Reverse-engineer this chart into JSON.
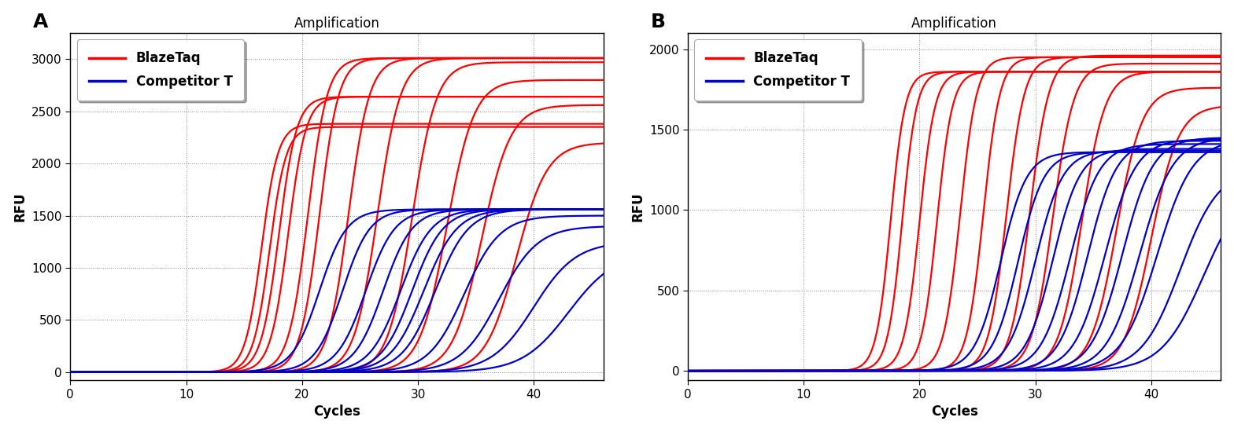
{
  "panel_A": {
    "title": "Amplification",
    "xlabel": "Cycles",
    "ylabel": "RFU",
    "xlim": [
      0,
      46
    ],
    "ylim": [
      -80,
      3250
    ],
    "yticks": [
      0,
      500,
      1000,
      1500,
      2000,
      2500,
      3000
    ],
    "xticks": [
      0,
      10,
      20,
      30,
      40
    ],
    "red_curves": [
      {
        "mid": 16.5,
        "plateau": 2380,
        "slope": 1.4
      },
      {
        "mid": 17.2,
        "plateau": 2350,
        "slope": 1.4
      },
      {
        "mid": 18.0,
        "plateau": 2640,
        "slope": 1.3
      },
      {
        "mid": 18.8,
        "plateau": 2640,
        "slope": 1.3
      },
      {
        "mid": 20.5,
        "plateau": 3010,
        "slope": 1.2
      },
      {
        "mid": 21.5,
        "plateau": 3010,
        "slope": 1.2
      },
      {
        "mid": 24.0,
        "plateau": 3010,
        "slope": 1.1
      },
      {
        "mid": 26.5,
        "plateau": 3010,
        "slope": 1.0
      },
      {
        "mid": 29.5,
        "plateau": 2970,
        "slope": 0.95
      },
      {
        "mid": 32.5,
        "plateau": 2800,
        "slope": 0.85
      },
      {
        "mid": 35.5,
        "plateau": 2560,
        "slope": 0.8
      },
      {
        "mid": 38.5,
        "plateau": 2200,
        "slope": 0.75
      }
    ],
    "blue_curves": [
      {
        "mid": 21.5,
        "plateau": 1560,
        "slope": 0.85
      },
      {
        "mid": 23.5,
        "plateau": 1560,
        "slope": 0.85
      },
      {
        "mid": 25.5,
        "plateau": 1560,
        "slope": 0.8
      },
      {
        "mid": 27.0,
        "plateau": 1560,
        "slope": 0.8
      },
      {
        "mid": 28.5,
        "plateau": 1560,
        "slope": 0.75
      },
      {
        "mid": 29.5,
        "plateau": 1560,
        "slope": 0.75
      },
      {
        "mid": 30.5,
        "plateau": 1560,
        "slope": 0.7
      },
      {
        "mid": 31.5,
        "plateau": 1560,
        "slope": 0.7
      },
      {
        "mid": 34.0,
        "plateau": 1500,
        "slope": 0.65
      },
      {
        "mid": 37.0,
        "plateau": 1400,
        "slope": 0.6
      },
      {
        "mid": 40.0,
        "plateau": 1250,
        "slope": 0.55
      },
      {
        "mid": 43.0,
        "plateau": 1150,
        "slope": 0.5
      }
    ]
  },
  "panel_B": {
    "title": "Amplification",
    "xlabel": "Cycles",
    "ylabel": "RFU",
    "xlim": [
      0,
      46
    ],
    "ylim": [
      -60,
      2100
    ],
    "yticks": [
      0,
      500,
      1000,
      1500,
      2000
    ],
    "xticks": [
      0,
      10,
      20,
      30,
      40
    ],
    "red_curves": [
      {
        "mid": 17.5,
        "plateau": 1860,
        "slope": 1.6
      },
      {
        "mid": 18.5,
        "plateau": 1860,
        "slope": 1.6
      },
      {
        "mid": 20.0,
        "plateau": 1860,
        "slope": 1.5
      },
      {
        "mid": 21.5,
        "plateau": 1860,
        "slope": 1.5
      },
      {
        "mid": 23.5,
        "plateau": 1950,
        "slope": 1.4
      },
      {
        "mid": 25.5,
        "plateau": 1950,
        "slope": 1.4
      },
      {
        "mid": 27.5,
        "plateau": 1950,
        "slope": 1.3
      },
      {
        "mid": 29.5,
        "plateau": 1960,
        "slope": 1.2
      },
      {
        "mid": 31.5,
        "plateau": 1910,
        "slope": 1.1
      },
      {
        "mid": 34.0,
        "plateau": 1860,
        "slope": 1.0
      },
      {
        "mid": 37.0,
        "plateau": 1760,
        "slope": 0.9
      },
      {
        "mid": 40.0,
        "plateau": 1650,
        "slope": 0.85
      }
    ],
    "blue_curves": [
      {
        "mid": 27.0,
        "plateau": 1360,
        "slope": 0.9
      },
      {
        "mid": 28.5,
        "plateau": 1360,
        "slope": 0.9
      },
      {
        "mid": 30.0,
        "plateau": 1370,
        "slope": 0.85
      },
      {
        "mid": 31.5,
        "plateau": 1380,
        "slope": 0.85
      },
      {
        "mid": 33.0,
        "plateau": 1410,
        "slope": 0.8
      },
      {
        "mid": 34.5,
        "plateau": 1430,
        "slope": 0.8
      },
      {
        "mid": 36.0,
        "plateau": 1440,
        "slope": 0.75
      },
      {
        "mid": 37.5,
        "plateau": 1450,
        "slope": 0.75
      },
      {
        "mid": 39.0,
        "plateau": 1450,
        "slope": 0.7
      },
      {
        "mid": 40.5,
        "plateau": 1440,
        "slope": 0.65
      },
      {
        "mid": 42.5,
        "plateau": 1260,
        "slope": 0.6
      },
      {
        "mid": 44.5,
        "plateau": 1180,
        "slope": 0.55
      }
    ]
  },
  "label_A": "A",
  "label_B": "B",
  "legend_red": "BlazeTaq",
  "legend_blue": "Competitor T",
  "red_color": "#FF0000",
  "blue_color": "#0000CC",
  "bg_color": "#FFFFFF",
  "grid_color": "#888888",
  "line_width": 1.6,
  "title_fontsize": 12,
  "axis_label_fontsize": 12,
  "tick_fontsize": 11,
  "legend_fontsize": 12,
  "panel_label_fontsize": 18
}
